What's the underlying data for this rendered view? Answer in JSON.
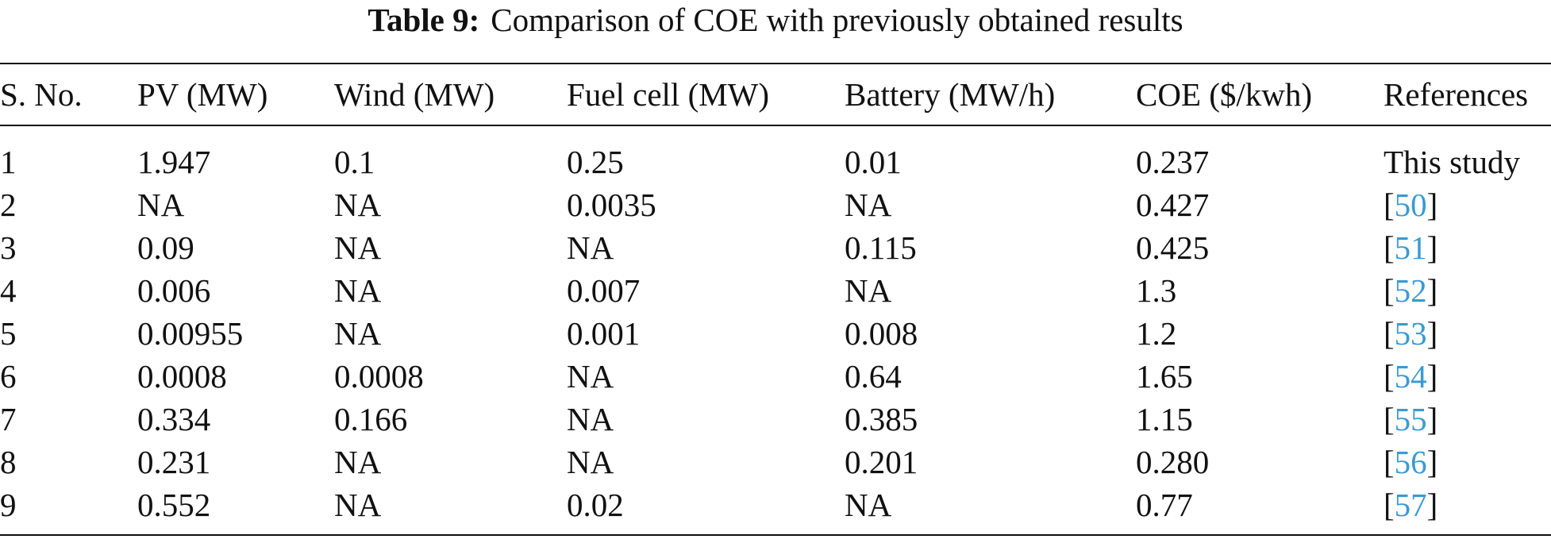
{
  "caption": {
    "label": "Table 9:",
    "text": "Comparison of COE with previously obtained results"
  },
  "table": {
    "headers": [
      "S. No.",
      "PV (MW)",
      "Wind (MW)",
      "Fuel cell (MW)",
      "Battery (MW/h)",
      "COE ($/kwh)",
      "References"
    ],
    "rows": [
      {
        "sno": "1",
        "pv": "1.947",
        "wind": "0.1",
        "fuel_cell": "0.25",
        "battery": "0.01",
        "coe": "0.237",
        "reference_text": "This study"
      },
      {
        "sno": "2",
        "pv": "NA",
        "wind": "NA",
        "fuel_cell": "0.0035",
        "battery": "NA",
        "coe": "0.427",
        "reference_number": "50"
      },
      {
        "sno": "3",
        "pv": "0.09",
        "wind": "NA",
        "fuel_cell": "NA",
        "battery": "0.115",
        "coe": "0.425",
        "reference_number": "51"
      },
      {
        "sno": "4",
        "pv": "0.006",
        "wind": "NA",
        "fuel_cell": "0.007",
        "battery": "NA",
        "coe": "1.3",
        "reference_number": "52"
      },
      {
        "sno": "5",
        "pv": "0.00955",
        "wind": "NA",
        "fuel_cell": "0.001",
        "battery": "0.008",
        "coe": "1.2",
        "reference_number": "53"
      },
      {
        "sno": "6",
        "pv": "0.0008",
        "wind": "0.0008",
        "fuel_cell": "NA",
        "battery": "0.64",
        "coe": "1.65",
        "reference_number": "54"
      },
      {
        "sno": "7",
        "pv": "0.334",
        "wind": "0.166",
        "fuel_cell": "NA",
        "battery": "0.385",
        "coe": "1.15",
        "reference_number": "55"
      },
      {
        "sno": "8",
        "pv": "0.231",
        "wind": "NA",
        "fuel_cell": "NA",
        "battery": "0.201",
        "coe": "0.280",
        "reference_number": "56"
      },
      {
        "sno": "9",
        "pv": "0.552",
        "wind": "NA",
        "fuel_cell": "0.02",
        "battery": "NA",
        "coe": "0.77",
        "reference_number": "57"
      }
    ]
  },
  "colors": {
    "text": "#111111",
    "reference_link": "#3a9ad3",
    "background": "#ffffff"
  }
}
